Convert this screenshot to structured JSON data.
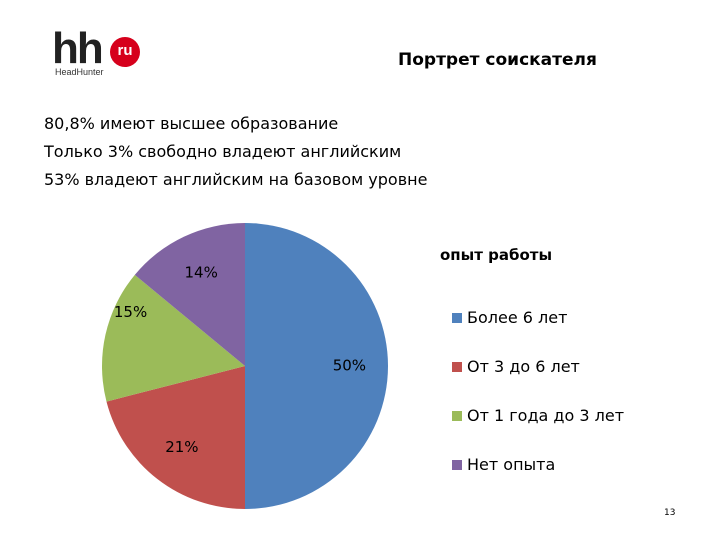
{
  "logo": {
    "mark": "hh",
    "badge": "ru",
    "wordmark": "HeadHunter",
    "badge_color": "#d6001c"
  },
  "title": "Портрет соискателя",
  "facts": [
    "80,8% имеют высшее образование",
    "Только 3% свободно владеют английским",
    "53% владеют английским на базовом уровне"
  ],
  "chart_data": {
    "type": "pie",
    "title": "опыт работы",
    "legend_position": "right",
    "start_angle": "12 o'clock, clockwise",
    "categories": [
      "Более 6 лет",
      "От 3 до 6 лет",
      "От 1 года до 3 лет",
      "Нет опыта"
    ],
    "values": [
      50,
      21,
      15,
      14
    ],
    "labels": [
      "50%",
      "21%",
      "15%",
      "14%"
    ],
    "colors": [
      "#4f81bd",
      "#c0504d",
      "#9bbb59",
      "#8064a2"
    ]
  },
  "page_number": "13"
}
